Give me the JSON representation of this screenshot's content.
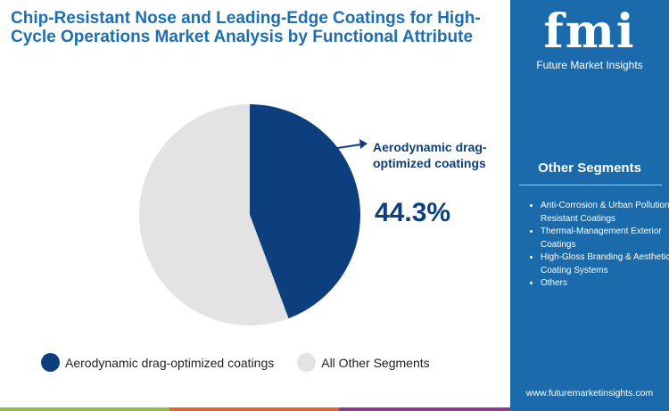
{
  "title": "Chip-Resistant Nose and Leading-Edge Coatings for High-Cycle Operations Market Analysis by Functional Attribute",
  "logo": {
    "mark": "fmi",
    "name": "Future Market Insights"
  },
  "sidebar": {
    "heading": "Other Segments",
    "items": [
      "Anti-Corrosion & Urban Pollution-Resistant Coatings",
      "Thermal-Management Exterior Coatings",
      "High-Gloss Branding & Aesthetic Coating Systems",
      "Others"
    ],
    "url": "www.futuremarketinsights.com"
  },
  "chart_data": {
    "type": "pie",
    "slices": [
      {
        "name": "Aerodynamic drag-optimized coatings",
        "value": 44.3,
        "color": "#0d3f7e"
      },
      {
        "name": "All Other Segments",
        "value": 55.7,
        "color": "#e3e3e3"
      }
    ],
    "callout": {
      "label": "Aerodynamic drag-optimized coatings",
      "value": "44.3%"
    },
    "legend": "bottom"
  },
  "colors": {
    "brand": "#1b6aab",
    "bar": [
      "#8cbf3f",
      "#e8622c",
      "#8e3b92"
    ]
  }
}
